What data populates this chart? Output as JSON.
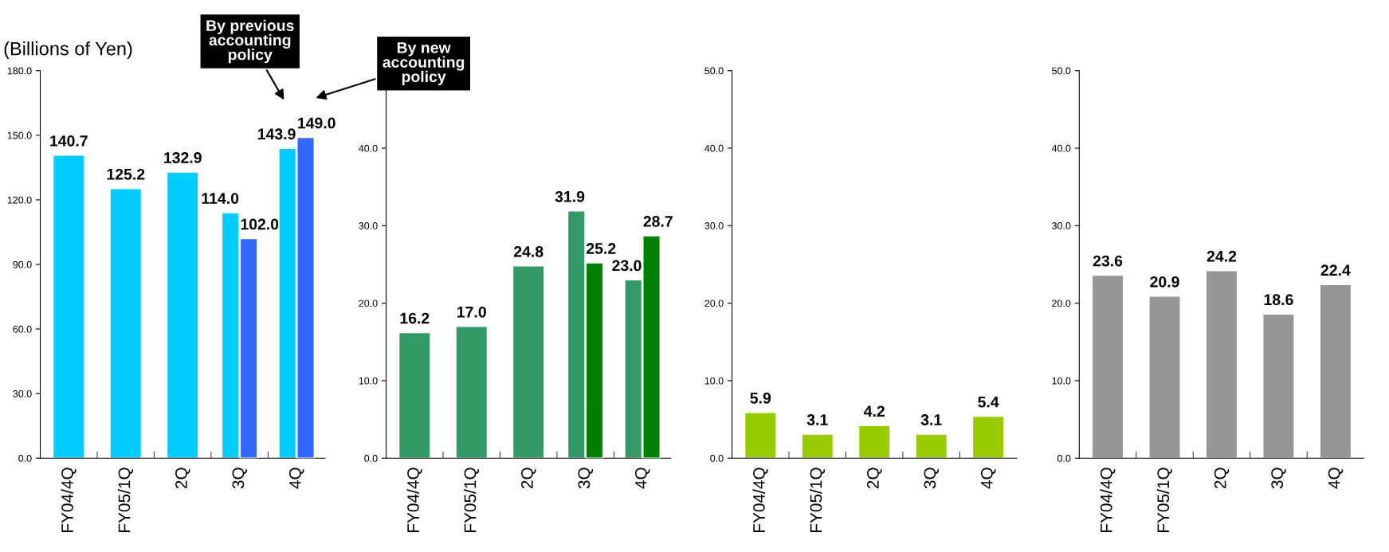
{
  "chart_data": [
    {
      "type": "bar",
      "ylabel": "(Billions of Yen)",
      "categories": [
        "FY04/4Q",
        "FY05/1Q",
        "2Q",
        "3Q",
        "4Q"
      ],
      "ylim": [
        0,
        180
      ],
      "yticks": [
        {
          "value": 0,
          "label": "0.0"
        },
        {
          "value": 30,
          "label": "30.0"
        },
        {
          "value": 60,
          "label": "60.0"
        },
        {
          "value": 90,
          "label": "90.0"
        },
        {
          "value": 120,
          "label": "120.0"
        },
        {
          "value": 150,
          "label": "150.0"
        },
        {
          "value": 180,
          "label": "180.0"
        }
      ],
      "grid": false,
      "legend": false,
      "series": [
        {
          "color": "#00ccff",
          "values": [
            140.7,
            125.2,
            132.9,
            114.0,
            143.9
          ],
          "value_labels": [
            "140.7",
            "125.2",
            "132.9",
            "114.0",
            "143.9"
          ]
        },
        {
          "color": "#3366ff",
          "values": [
            null,
            null,
            null,
            102.0,
            149.0
          ],
          "value_labels": [
            null,
            null,
            null,
            "102.0",
            "149.0"
          ]
        }
      ],
      "annotations": [
        "By previous\naccounting\npolicy",
        "By new\naccounting\npolicy"
      ]
    },
    {
      "type": "bar",
      "categories": [
        "FY04/4Q",
        "FY05/1Q",
        "2Q",
        "3Q",
        "4Q"
      ],
      "ylim": [
        0,
        50
      ],
      "yticks": [
        {
          "value": 0,
          "label": "0.0"
        },
        {
          "value": 10,
          "label": "10.0"
        },
        {
          "value": 20,
          "label": "20.0"
        },
        {
          "value": 30,
          "label": "30.0"
        },
        {
          "value": 40,
          "label": "40.0"
        }
      ],
      "grid": false,
      "legend": false,
      "series": [
        {
          "color": "#339966",
          "values": [
            16.2,
            17.0,
            24.8,
            31.9,
            23.0
          ],
          "value_labels": [
            "16.2",
            "17.0",
            "24.8",
            "31.9",
            "23.0"
          ]
        },
        {
          "color": "#008000",
          "values": [
            null,
            null,
            null,
            25.2,
            28.7
          ],
          "value_labels": [
            null,
            null,
            null,
            "25.2",
            "28.7"
          ]
        }
      ]
    },
    {
      "type": "bar",
      "categories": [
        "FY04/4Q",
        "FY05/1Q",
        "2Q",
        "3Q",
        "4Q"
      ],
      "ylim": [
        0,
        50
      ],
      "yticks": [
        {
          "value": 0,
          "label": "0.0"
        },
        {
          "value": 10,
          "label": "10.0"
        },
        {
          "value": 20,
          "label": "20.0"
        },
        {
          "value": 30,
          "label": "30.0"
        },
        {
          "value": 40,
          "label": "40.0"
        },
        {
          "value": 50,
          "label": "50.0"
        }
      ],
      "grid": false,
      "legend": false,
      "series": [
        {
          "color": "#99cc00",
          "values": [
            5.9,
            3.1,
            4.2,
            3.1,
            5.4
          ],
          "value_labels": [
            "5.9",
            "3.1",
            "4.2",
            "3.1",
            "5.4"
          ]
        }
      ]
    },
    {
      "type": "bar",
      "categories": [
        "FY04/4Q",
        "FY05/1Q",
        "2Q",
        "3Q",
        "4Q"
      ],
      "ylim": [
        0,
        50
      ],
      "yticks": [
        {
          "value": 0,
          "label": "0.0"
        },
        {
          "value": 10,
          "label": "10.0"
        },
        {
          "value": 20,
          "label": "20.0"
        },
        {
          "value": 30,
          "label": "30.0"
        },
        {
          "value": 40,
          "label": "40.0"
        },
        {
          "value": 50,
          "label": "50.0"
        }
      ],
      "grid": false,
      "legend": false,
      "series": [
        {
          "color": "#969696",
          "values": [
            23.6,
            20.9,
            24.2,
            18.6,
            22.4
          ],
          "value_labels": [
            "23.6",
            "20.9",
            "24.2",
            "18.6",
            "22.4"
          ]
        }
      ]
    }
  ]
}
